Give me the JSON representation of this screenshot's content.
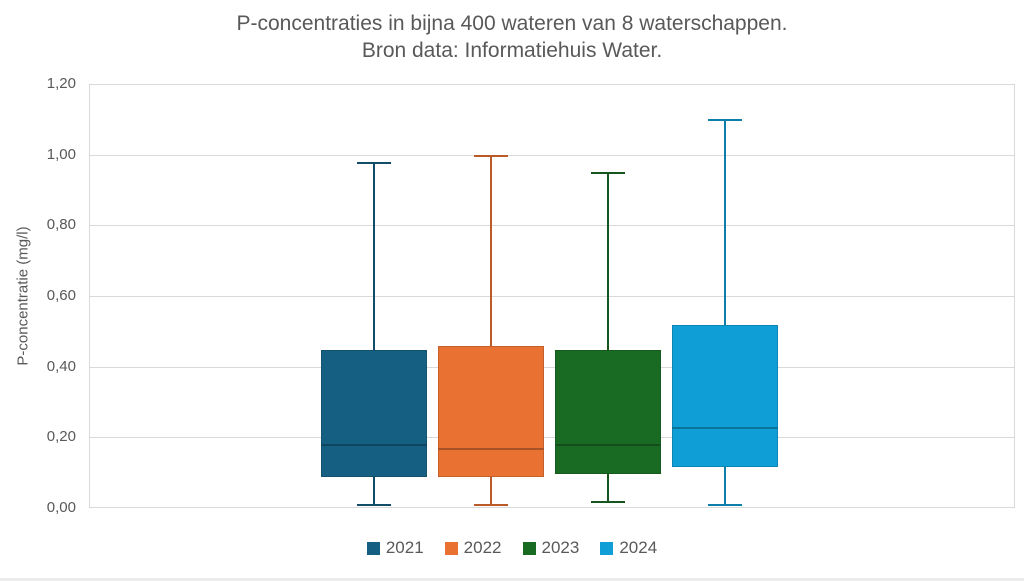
{
  "title": {
    "line1": "P-concentraties in bijna 400 wateren van 8 waterschappen.",
    "line2": "Bron data: Informatiehuis Water."
  },
  "y_axis": {
    "title": "P-concentratie (mg/l)",
    "ticks_top_to_bottom": [
      "1,20",
      "1,00",
      "0,80",
      "0,60",
      "0,40",
      "0,20",
      "0,00"
    ],
    "min": 0,
    "max": 1.2
  },
  "legend": {
    "items": [
      {
        "label": "2021",
        "color": "#156082"
      },
      {
        "label": "2022",
        "color": "#E97132"
      },
      {
        "label": "2023",
        "color": "#196B24"
      },
      {
        "label": "2024",
        "color": "#0F9ED5"
      }
    ]
  },
  "colors": {
    "text": "#595959",
    "gridline": "#D9D9D9"
  },
  "chart_data": {
    "type": "boxplot",
    "title": "P-concentraties in bijna 400 wateren van 8 waterschappen. Bron data: Informatiehuis Water.",
    "xlabel": "",
    "ylabel": "P-concentratie (mg/l)",
    "ylim": [
      0,
      1.2
    ],
    "y_tick_step": 0.2,
    "grid": true,
    "legend_position": "bottom",
    "series": [
      {
        "name": "2021",
        "color": "#156082",
        "whisker_low": 0.01,
        "q1": 0.09,
        "median": 0.18,
        "q3": 0.45,
        "whisker_high": 0.98
      },
      {
        "name": "2022",
        "color": "#E97132",
        "whisker_low": 0.01,
        "q1": 0.09,
        "median": 0.17,
        "q3": 0.46,
        "whisker_high": 1.0
      },
      {
        "name": "2023",
        "color": "#196B24",
        "whisker_low": 0.02,
        "q1": 0.1,
        "median": 0.18,
        "q3": 0.45,
        "whisker_high": 0.95
      },
      {
        "name": "2024",
        "color": "#0F9ED5",
        "whisker_low": 0.01,
        "q1": 0.12,
        "median": 0.23,
        "q3": 0.52,
        "whisker_high": 1.1
      }
    ]
  }
}
